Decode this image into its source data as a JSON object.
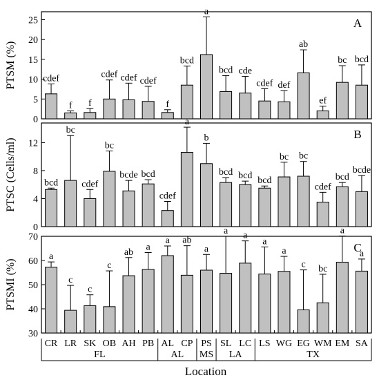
{
  "chart_data": [
    {
      "type": "bar",
      "panel": "A",
      "ylabel": "PTSM (%)",
      "ylim": [
        0,
        27
      ],
      "yticks": [
        0,
        5,
        10,
        15,
        20,
        25
      ],
      "categories": [
        "CR",
        "LR",
        "SK",
        "OB",
        "AH",
        "PB",
        "AL",
        "CP",
        "PS",
        "SL",
        "LC",
        "LS",
        "WG",
        "EG",
        "WM",
        "EM",
        "SA"
      ],
      "values": [
        6.3,
        1.5,
        1.6,
        5.0,
        4.8,
        4.4,
        1.6,
        8.5,
        16.2,
        6.9,
        6.5,
        4.5,
        4.3,
        11.6,
        2.0,
        9.2,
        8.5
      ],
      "errors": [
        2.5,
        0.5,
        1.0,
        4.8,
        4.2,
        3.8,
        0.7,
        4.8,
        9.5,
        4.0,
        4.2,
        3.1,
        2.8,
        5.8,
        1.2,
        4.2,
        5.1
      ],
      "letters": [
        "cdef",
        "f",
        "f",
        "cdef",
        "cdef",
        "cdef",
        "f",
        "bcd",
        "a",
        "bcd",
        "cde",
        "cdef",
        "def",
        "ab",
        "ef",
        "bc",
        "bcd"
      ],
      "show_xlabels": false
    },
    {
      "type": "bar",
      "panel": "B",
      "ylabel": "PTSC (Cells/ml)",
      "ylim": [
        0,
        14.8
      ],
      "yticks": [
        0,
        4,
        8,
        12
      ],
      "categories": [
        "CR",
        "LR",
        "SK",
        "OB",
        "AH",
        "PB",
        "AL",
        "CP",
        "PS",
        "SL",
        "LC",
        "LS",
        "WG",
        "EG",
        "WM",
        "EM",
        "SA"
      ],
      "values": [
        5.3,
        6.6,
        4.0,
        7.9,
        5.1,
        6.1,
        2.3,
        10.6,
        9.0,
        6.3,
        6.0,
        5.5,
        7.1,
        7.2,
        3.5,
        5.7,
        5.0
      ],
      "errors": [
        0.2,
        6.4,
        1.3,
        2.9,
        1.5,
        0.6,
        1.3,
        3.6,
        2.9,
        0.7,
        0.5,
        0.3,
        2.1,
        2.1,
        1.4,
        0.6,
        2.3
      ],
      "letters": [
        "bcd",
        "bc",
        "cdef",
        "bc",
        "bcde",
        "bcd",
        "cdef",
        "a",
        "b",
        "bcd",
        "bcd",
        "bcd",
        "bc",
        "bc",
        "cdef",
        "bcd",
        "bcde"
      ],
      "show_xlabels": false
    },
    {
      "type": "bar",
      "panel": "C",
      "ylabel": "PTSMI (%)",
      "ylim": [
        30,
        70
      ],
      "yticks": [
        30,
        40,
        50,
        60,
        70
      ],
      "categories": [
        "CR",
        "LR",
        "SK",
        "OB",
        "AH",
        "PB",
        "AL",
        "CP",
        "PS",
        "SL",
        "LC",
        "LS",
        "WG",
        "EG",
        "WM",
        "EM",
        "SA"
      ],
      "values": [
        57.2,
        39.4,
        41.3,
        40.9,
        53.7,
        56.3,
        62.0,
        53.9,
        56.0,
        54.7,
        58.9,
        54.4,
        55.5,
        39.6,
        42.5,
        59.3,
        55.6
      ],
      "errors": [
        2.2,
        10.3,
        4.5,
        14.8,
        7.5,
        7.0,
        4.0,
        12.2,
        6.5,
        15.3,
        9.2,
        11.2,
        6.2,
        16.5,
        11.8,
        10.8,
        5.0
      ],
      "letters": [
        "a",
        "c",
        "c",
        "c",
        "ab",
        "a",
        "a",
        "ab",
        "a",
        "a",
        "a",
        "a",
        "a",
        "c",
        "bc",
        "a",
        "a"
      ],
      "show_xlabels": true
    }
  ],
  "panel_labels": [
    "A",
    "B",
    "C"
  ],
  "x_categories": [
    "CR",
    "LR",
    "SK",
    "OB",
    "AH",
    "PB",
    "AL",
    "CP",
    "PS",
    "SL",
    "LC",
    "LS",
    "WG",
    "EG",
    "WM",
    "EM",
    "SA"
  ],
  "groups": [
    {
      "label": "FL",
      "start": 0,
      "end": 5
    },
    {
      "label": "AL",
      "start": 6,
      "end": 7
    },
    {
      "label": "MS",
      "start": 8,
      "end": 8
    },
    {
      "label": "LA",
      "start": 9,
      "end": 10
    },
    {
      "label": "TX",
      "start": 11,
      "end": 16
    }
  ],
  "xlabel": "Location",
  "colors": {
    "bar_fill": "#c0c0c0",
    "stroke": "#000000"
  }
}
